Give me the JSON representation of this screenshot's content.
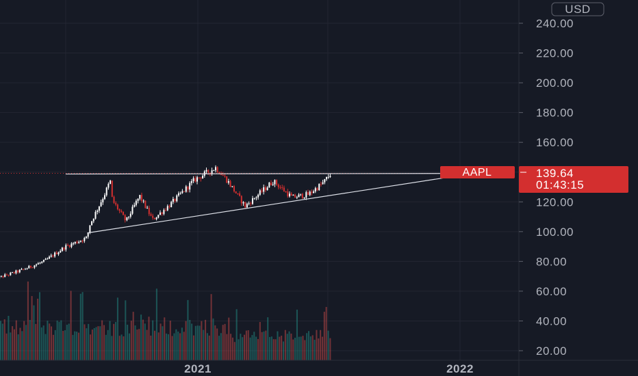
{
  "currency_button": "USD",
  "chart_data": {
    "type": "candlestick",
    "symbol": "AAPL",
    "last_price": 139.64,
    "last_price_label": "139.64",
    "countdown": "01:43:15",
    "y_axis": {
      "ticks": [
        "240.00",
        "220.00",
        "200.00",
        "180.00",
        "160.00",
        "140.00",
        "120.00",
        "100.00",
        "80.00",
        "60.00",
        "40.00",
        "20.00"
      ],
      "range": [
        14.5,
        246.5
      ]
    },
    "x_axis": {
      "labels": [
        "2021",
        "2022"
      ]
    },
    "grid": true,
    "colors": {
      "up": "#ffffff",
      "down": "#d32f2f",
      "background": "#161a25",
      "volume_up": "#26a69a",
      "volume_down": "#ef5350",
      "tag": "#d32f2f"
    },
    "price_path": [
      {
        "date": "2020-03-23",
        "price": 68
      },
      {
        "date": "2020-04-30",
        "price": 74
      },
      {
        "date": "2020-06-01",
        "price": 80
      },
      {
        "date": "2020-07-01",
        "price": 90
      },
      {
        "date": "2020-07-31",
        "price": 96
      },
      {
        "date": "2020-08-03",
        "price": 104
      },
      {
        "date": "2020-08-24",
        "price": 125
      },
      {
        "date": "2020-09-01",
        "price": 134
      },
      {
        "date": "2020-09-04",
        "price": 121
      },
      {
        "date": "2020-09-23",
        "price": 107
      },
      {
        "date": "2020-10-12",
        "price": 124
      },
      {
        "date": "2020-10-30",
        "price": 108
      },
      {
        "date": "2020-11-23",
        "price": 118
      },
      {
        "date": "2020-12-28",
        "price": 135
      },
      {
        "date": "2021-01-26",
        "price": 143
      },
      {
        "date": "2021-02-10",
        "price": 135
      },
      {
        "date": "2021-03-08",
        "price": 117
      },
      {
        "date": "2021-04-16",
        "price": 134
      },
      {
        "date": "2021-05-12",
        "price": 123
      },
      {
        "date": "2021-06-04",
        "price": 125
      },
      {
        "date": "2021-06-25",
        "price": 133
      },
      {
        "date": "2021-07-06",
        "price": 139.64
      }
    ],
    "trendlines": [
      {
        "name": "resistance",
        "from": {
          "date": "2020-07-01",
          "price": 138.7
        },
        "to": {
          "date": "2021-12-27",
          "price": 139.1
        }
      },
      {
        "name": "support",
        "from": {
          "date": "2020-07-31",
          "price": 99.1
        },
        "to": {
          "date": "2021-12-27",
          "price": 137.4
        }
      }
    ],
    "volume_bars": 170
  }
}
